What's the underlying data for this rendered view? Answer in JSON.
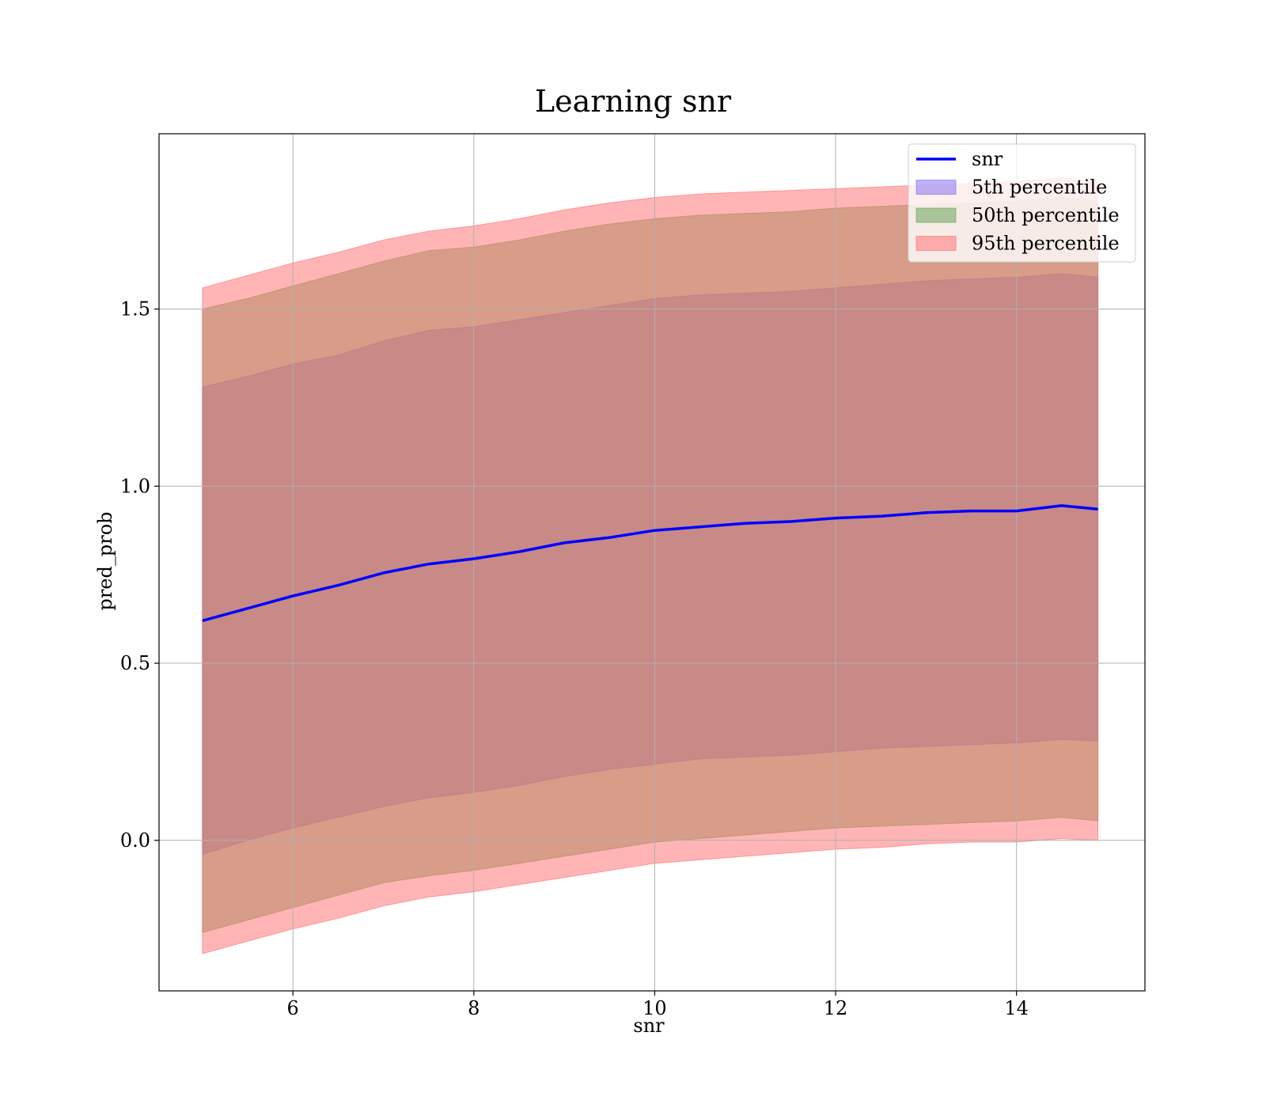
{
  "chart_data": {
    "type": "area",
    "title": "Learning snr",
    "xlabel": "snr",
    "ylabel": "pred_prob",
    "xlim": [
      4.52,
      15.42
    ],
    "ylim": [
      -0.425,
      1.995
    ],
    "xticks": [
      6,
      8,
      10,
      12,
      14
    ],
    "xtick_labels": [
      "6",
      "8",
      "10",
      "12",
      "14"
    ],
    "yticks": [
      0.0,
      0.5,
      1.0,
      1.5
    ],
    "ytick_labels": [
      "0.0",
      "0.5",
      "1.0",
      "1.5"
    ],
    "grid": true,
    "legend_position": "top-right",
    "x": [
      5.0,
      5.5,
      6.0,
      6.5,
      7.0,
      7.5,
      8.0,
      8.5,
      9.0,
      9.5,
      10.0,
      10.5,
      11.0,
      11.5,
      12.0,
      12.5,
      13.0,
      13.5,
      14.0,
      14.5,
      14.9
    ],
    "line": {
      "name": "snr",
      "color": "#0000ff",
      "values": [
        0.62,
        0.655,
        0.69,
        0.72,
        0.755,
        0.78,
        0.795,
        0.815,
        0.84,
        0.855,
        0.875,
        0.885,
        0.895,
        0.9,
        0.91,
        0.915,
        0.925,
        0.93,
        0.93,
        0.945,
        0.935
      ]
    },
    "bands": [
      {
        "name": "5th percentile",
        "color": "#7b68ee",
        "lower": [
          -0.04,
          0.0,
          0.035,
          0.065,
          0.095,
          0.12,
          0.135,
          0.155,
          0.18,
          0.2,
          0.215,
          0.23,
          0.235,
          0.24,
          0.25,
          0.26,
          0.265,
          0.27,
          0.275,
          0.285,
          0.28
        ],
        "upper": [
          1.28,
          1.31,
          1.345,
          1.37,
          1.41,
          1.44,
          1.45,
          1.47,
          1.49,
          1.51,
          1.53,
          1.54,
          1.545,
          1.55,
          1.56,
          1.57,
          1.58,
          1.585,
          1.59,
          1.6,
          1.59
        ]
      },
      {
        "name": "50th percentile",
        "color": "#5fa050",
        "lower": [
          -0.26,
          -0.225,
          -0.19,
          -0.155,
          -0.12,
          -0.1,
          -0.085,
          -0.065,
          -0.045,
          -0.025,
          -0.005,
          0.005,
          0.015,
          0.025,
          0.035,
          0.04,
          0.045,
          0.05,
          0.055,
          0.065,
          0.055
        ],
        "upper": [
          1.5,
          1.53,
          1.565,
          1.6,
          1.635,
          1.665,
          1.675,
          1.695,
          1.72,
          1.74,
          1.755,
          1.765,
          1.77,
          1.775,
          1.785,
          1.79,
          1.795,
          1.8,
          1.805,
          1.815,
          1.805
        ]
      },
      {
        "name": "95th percentile",
        "color": "#ff6b6b",
        "lower": [
          -0.32,
          -0.285,
          -0.25,
          -0.22,
          -0.185,
          -0.16,
          -0.145,
          -0.125,
          -0.105,
          -0.085,
          -0.065,
          -0.055,
          -0.045,
          -0.035,
          -0.025,
          -0.02,
          -0.01,
          -0.005,
          -0.005,
          0.005,
          0.0
        ],
        "upper": [
          1.56,
          1.595,
          1.63,
          1.66,
          1.695,
          1.72,
          1.735,
          1.755,
          1.78,
          1.8,
          1.815,
          1.825,
          1.83,
          1.835,
          1.84,
          1.845,
          1.85,
          1.855,
          1.86,
          1.87,
          1.86
        ]
      }
    ]
  }
}
